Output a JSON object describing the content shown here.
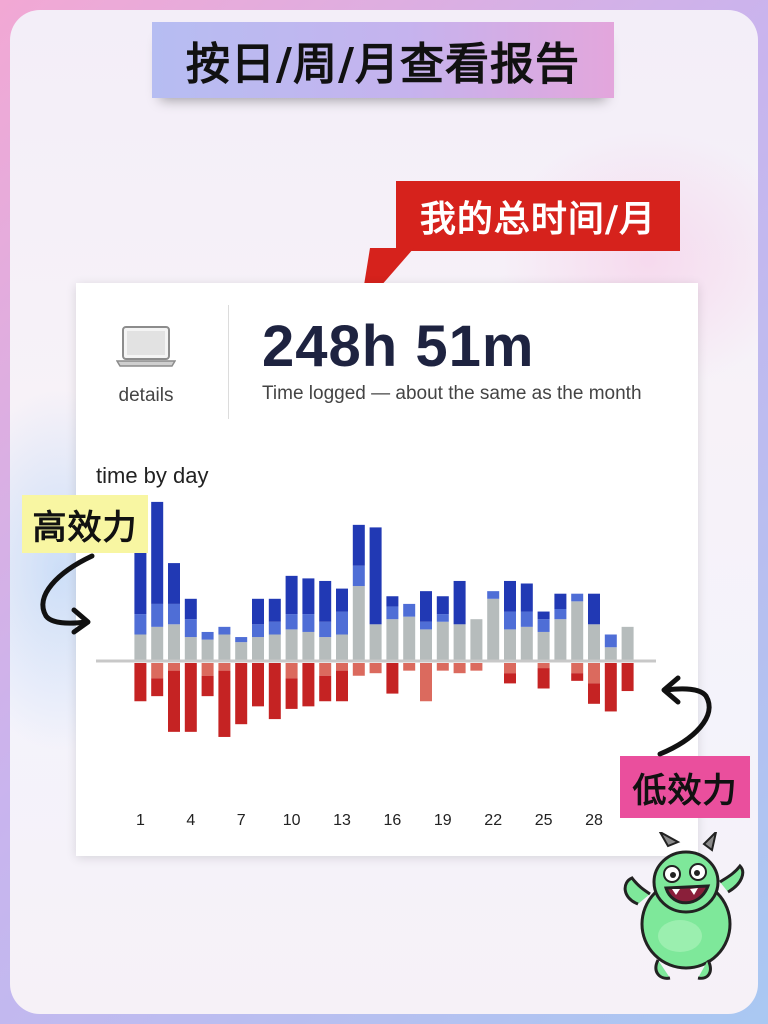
{
  "page": {
    "title": "按日/周/月查看报告",
    "callout": "我的总时间/月",
    "tags": {
      "high": "高效力",
      "low": "低效力"
    }
  },
  "card": {
    "icon": "laptop-icon",
    "details_label": "details",
    "total_time": "248h 51m",
    "time_subtext": "Time logged — about the same as the month",
    "section_label": "time by day"
  },
  "chart_data": {
    "type": "bar",
    "x": [
      1,
      2,
      3,
      4,
      5,
      6,
      7,
      8,
      9,
      10,
      11,
      12,
      13,
      14,
      15,
      16,
      17,
      18,
      19,
      20,
      21,
      22,
      23,
      24,
      25,
      26,
      27,
      28,
      29,
      30
    ],
    "xticks": [
      "1",
      "4",
      "7",
      "10",
      "13",
      "16",
      "19",
      "22",
      "25",
      "28"
    ],
    "above": {
      "neutral": [
        1.0,
        1.3,
        1.4,
        0.9,
        0.8,
        1.0,
        0.7,
        0.9,
        1.0,
        1.2,
        1.1,
        0.9,
        1.0,
        2.9,
        1.4,
        1.6,
        1.7,
        1.2,
        1.5,
        1.4,
        1.6,
        2.4,
        1.2,
        1.3,
        1.1,
        1.6,
        2.3,
        1.4,
        0.5,
        1.3
      ],
      "light_blue": [
        0.8,
        0.9,
        0.8,
        0.7,
        0.3,
        0.3,
        0.2,
        0.5,
        0.5,
        0.6,
        0.7,
        0.6,
        0.9,
        0.8,
        0.0,
        0.5,
        0.5,
        0.3,
        0.3,
        0.0,
        0.0,
        0.3,
        0.7,
        0.6,
        0.5,
        0.4,
        0.3,
        0.0,
        0.5,
        0.0
      ],
      "dark_blue": [
        3.5,
        4.0,
        1.6,
        0.8,
        0.0,
        0.0,
        0.0,
        1.0,
        0.9,
        1.5,
        1.4,
        1.6,
        0.9,
        1.6,
        3.8,
        0.4,
        0.0,
        1.2,
        0.7,
        1.7,
        0.0,
        0.0,
        1.2,
        1.1,
        0.3,
        0.6,
        0.0,
        1.2,
        0.0,
        0.0
      ]
    },
    "below": {
      "light_red": [
        0.0,
        0.6,
        0.3,
        0.0,
        0.5,
        0.3,
        0.0,
        0.0,
        0.0,
        0.6,
        0.0,
        0.5,
        0.3,
        0.5,
        0.4,
        0.0,
        0.3,
        1.5,
        0.3,
        0.4,
        0.3,
        0.0,
        0.4,
        0.0,
        0.2,
        0.0,
        0.4,
        0.8,
        0.0,
        0.0
      ],
      "dark_red": [
        1.5,
        0.7,
        2.4,
        2.7,
        0.8,
        2.6,
        2.4,
        1.7,
        2.2,
        1.2,
        1.7,
        1.0,
        1.2,
        0.0,
        0.0,
        1.2,
        0.0,
        0.0,
        0.0,
        0.0,
        0.0,
        0.0,
        0.4,
        0.0,
        0.8,
        0.0,
        0.3,
        0.8,
        1.9,
        1.1
      ]
    },
    "colors": {
      "neutral": "#b6bcbc",
      "light_blue": "#4f6ed6",
      "dark_blue": "#2139b4",
      "light_red": "#db6a5e",
      "dark_red": "#c52323",
      "baseline": "#c8c8c8"
    },
    "grid": false
  }
}
